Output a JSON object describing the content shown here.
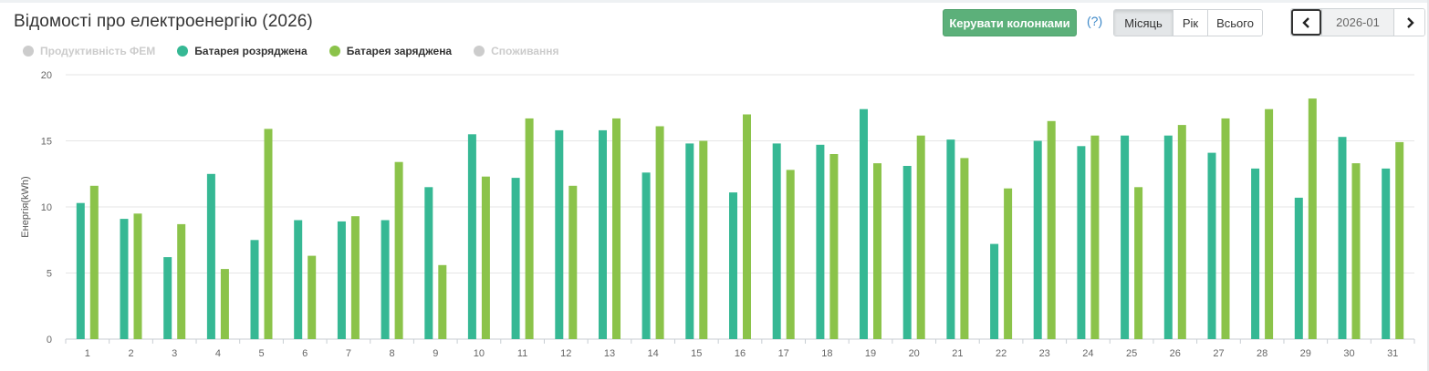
{
  "header": {
    "title": "Відомості про електроенергію (2026)",
    "manage_columns_label": "Керувати колонками",
    "help_label": "(?)"
  },
  "period_tabs": [
    {
      "label": "Місяць",
      "active": true
    },
    {
      "label": "Рік",
      "active": false
    },
    {
      "label": "Всього",
      "active": false
    }
  ],
  "date_nav": {
    "value": "2026-01",
    "prev_icon": "chevron-left-icon",
    "next_icon": "chevron-right-icon"
  },
  "legend": [
    {
      "label": "Продуктивність ФЕМ",
      "color": "#cccccc",
      "visible": false
    },
    {
      "label": "Батарея розряджена",
      "color": "#36b894",
      "visible": true
    },
    {
      "label": "Батарея заряджена",
      "color": "#8bc34a",
      "visible": true
    },
    {
      "label": "Споживання",
      "color": "#cccccc",
      "visible": false
    }
  ],
  "chart_data": {
    "type": "bar",
    "title": "",
    "xlabel": "",
    "ylabel": "Енергія(kWh)",
    "ylim": [
      0,
      20
    ],
    "yticks": [
      0,
      5,
      10,
      15,
      20
    ],
    "grid": true,
    "categories": [
      "1",
      "2",
      "3",
      "4",
      "5",
      "6",
      "7",
      "8",
      "9",
      "10",
      "11",
      "12",
      "13",
      "14",
      "15",
      "16",
      "17",
      "18",
      "19",
      "20",
      "21",
      "22",
      "23",
      "24",
      "25",
      "26",
      "27",
      "28",
      "29",
      "30",
      "31"
    ],
    "series": [
      {
        "name": "Батарея розряджена",
        "color": "#36b894",
        "values": [
          10.3,
          9.1,
          6.2,
          12.5,
          7.5,
          9.0,
          8.9,
          9.0,
          11.5,
          15.5,
          12.2,
          15.8,
          15.8,
          12.6,
          14.8,
          11.1,
          14.8,
          14.7,
          17.4,
          13.1,
          15.1,
          7.2,
          15.0,
          14.6,
          15.4,
          15.4,
          14.1,
          12.9,
          10.7,
          15.3,
          12.9
        ]
      },
      {
        "name": "Батарея заряджена",
        "color": "#8bc34a",
        "values": [
          11.6,
          9.5,
          8.7,
          5.3,
          15.9,
          6.3,
          9.3,
          13.4,
          5.6,
          12.3,
          16.7,
          11.6,
          16.7,
          16.1,
          15.0,
          17.0,
          12.8,
          14.0,
          13.3,
          15.4,
          13.7,
          11.4,
          16.5,
          15.4,
          11.5,
          16.2,
          16.7,
          17.4,
          18.2,
          13.3,
          14.9
        ]
      }
    ]
  }
}
